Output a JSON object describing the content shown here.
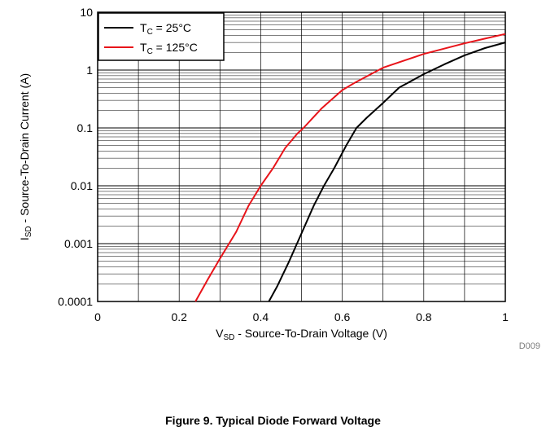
{
  "chart_data": {
    "type": "line",
    "y_scale": "log",
    "xlim": [
      0,
      1
    ],
    "ylim": [
      0.0001,
      10
    ],
    "grid": true,
    "legend_position": "top-left",
    "x_ticks": [
      "0",
      "0.2",
      "0.4",
      "0.6",
      "0.8",
      "1"
    ],
    "y_ticks": [
      "10",
      "1",
      "0.1",
      "0.01",
      "0.001",
      "0.0001"
    ],
    "xlabel": {
      "main": "V",
      "sub": "SD",
      "rest": " - Source-To-Drain Voltage (V)"
    },
    "ylabel": {
      "main": "I",
      "sub": "SD",
      "rest": " - Source-To-Drain Current (A)"
    },
    "series": [
      {
        "legend": {
          "main": "T",
          "sub": "C",
          "rest": " = 25°C"
        },
        "color": "#000000",
        "x": [
          0.42,
          0.44,
          0.47,
          0.5,
          0.53,
          0.555,
          0.58,
          0.61,
          0.635,
          0.66,
          0.7,
          0.74,
          0.8,
          0.85,
          0.9,
          0.95,
          1.0
        ],
        "y": [
          0.0001,
          0.00018,
          0.0005,
          0.0015,
          0.0045,
          0.01,
          0.02,
          0.05,
          0.1,
          0.15,
          0.27,
          0.5,
          0.85,
          1.25,
          1.8,
          2.4,
          3.0
        ]
      },
      {
        "legend": {
          "main": "T",
          "sub": "C",
          "rest": " = 125°C"
        },
        "color": "#e8141a",
        "x": [
          0.24,
          0.27,
          0.3,
          0.34,
          0.37,
          0.4,
          0.43,
          0.46,
          0.49,
          0.505,
          0.55,
          0.6,
          0.63,
          0.7,
          0.8,
          0.9,
          0.95,
          1.0
        ],
        "y": [
          0.0001,
          0.00024,
          0.00055,
          0.0016,
          0.0045,
          0.01,
          0.02,
          0.045,
          0.08,
          0.1,
          0.22,
          0.45,
          0.6,
          1.1,
          1.9,
          2.9,
          3.5,
          4.2
        ]
      }
    ]
  },
  "figure_code": "D009",
  "caption": "Figure 9. Typical Diode Forward Voltage"
}
